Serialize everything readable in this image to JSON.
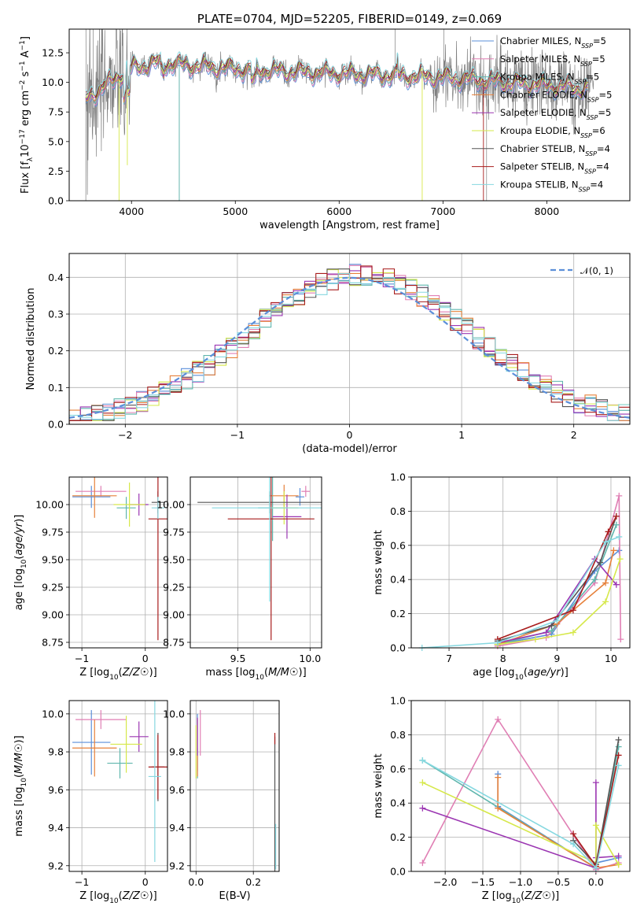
{
  "colors": {
    "Chabrier MILES": "#5b8fd9",
    "Salpeter MILES": "#e07fb4",
    "Kroupa MILES": "#5fb6ad",
    "Chabrier ELODIE": "#e6803a",
    "Salpeter ELODIE": "#9b36b2",
    "Kroupa ELODIE": "#d6e84a",
    "Chabrier STELIB": "#555555",
    "Salpeter STELIB": "#a81c1c",
    "Kroupa STELIB": "#86d8e0"
  },
  "chart_data": [
    {
      "id": "spectrum",
      "type": "line",
      "title": "PLATE=0704, MJD=52205, FIBERID=0149, z=0.069",
      "xlabel": "wavelength [Angstrom, rest frame]",
      "ylabel": "Flux [f_λ10^-17 erg cm^-2 s^-1 A^-1]",
      "xlim": [
        3400,
        8800
      ],
      "ylim": [
        0,
        14.5
      ],
      "xticks": [
        4000,
        5000,
        6000,
        7000,
        8000
      ],
      "yticks": [
        0.0,
        2.5,
        5.0,
        7.5,
        10.0,
        12.5
      ],
      "legend_position": "top-right",
      "legend": [
        {
          "name": "Chabrier MILES, N_SSP=5",
          "label": "Chabrier MILES, N",
          "sub": "SSP",
          "tail": "=5",
          "color": "#5b8fd9"
        },
        {
          "name": "Salpeter MILES, N_SSP=5",
          "label": "Salpeter MILES, N",
          "sub": "SSP",
          "tail": "=5",
          "color": "#e07fb4"
        },
        {
          "name": "Kroupa MILES, N_SSP=5",
          "label": "Kroupa MILES, N",
          "sub": "SSP",
          "tail": "=5",
          "color": "#5fb6ad"
        },
        {
          "name": "Chabrier ELODIE, N_SSP=5",
          "label": "Chabrier ELODIE, N",
          "sub": "SSP",
          "tail": "=5",
          "color": "#e6803a"
        },
        {
          "name": "Salpeter ELODIE, N_SSP=5",
          "label": "Salpeter ELODIE, N",
          "sub": "SSP",
          "tail": "=5",
          "color": "#9b36b2"
        },
        {
          "name": "Kroupa ELODIE, N_SSP=6",
          "label": "Kroupa ELODIE, N",
          "sub": "SSP",
          "tail": "=6",
          "color": "#d6e84a"
        },
        {
          "name": "Chabrier STELIB, N_SSP=4",
          "label": "Chabrier STELIB, N",
          "sub": "SSP",
          "tail": "=4",
          "color": "#555555"
        },
        {
          "name": "Salpeter STELIB, N_SSP=4",
          "label": "Salpeter STELIB, N",
          "sub": "SSP",
          "tail": "=4",
          "color": "#a81c1c"
        },
        {
          "name": "Kroupa STELIB, N_SSP=4",
          "label": "Kroupa STELIB, N",
          "sub": "SSP",
          "tail": "=4",
          "color": "#86d8e0"
        }
      ],
      "data_color": "#808080",
      "models": [
        {
          "name": "Kroupa ELODIE",
          "dips": [
            [
              3880,
              0
            ],
            [
              3960,
              3.0
            ],
            [
              6800,
              0
            ]
          ]
        },
        {
          "name": "Kroupa MILES",
          "dips": [
            [
              4460,
              0
            ]
          ]
        },
        {
          "name": "Salpeter STELIB",
          "dips": [
            [
              7390,
              0
            ]
          ]
        }
      ]
    },
    {
      "id": "residuals",
      "type": "step-histogram",
      "xlabel": "(data-model)/error",
      "ylabel": "Normed distribution",
      "xlim": [
        -2.5,
        2.5
      ],
      "ylim": [
        0,
        0.465
      ],
      "xticks": [
        -2,
        -1,
        0,
        1,
        2
      ],
      "yticks": [
        0.0,
        0.1,
        0.2,
        0.3,
        0.4
      ],
      "legend": [
        {
          "name": "N(0,1)",
          "label": "𝒩(0, 1)",
          "color": "#5b8fd9"
        }
      ],
      "legend_position": "top-right",
      "bins": {
        "start": -2.5,
        "width": 0.1
      }
    },
    {
      "id": "age-vs-Z",
      "type": "errorbar",
      "xlabel": "Z [log10(Z/Z☉)]",
      "ylabel": "age  [log10(age/yr)]",
      "xlim": [
        -1.2,
        0.35
      ],
      "ylim": [
        8.7,
        10.25
      ],
      "xticks": [
        -1,
        0
      ],
      "yticks": [
        8.75,
        9.0,
        9.25,
        9.5,
        9.75,
        10.0
      ],
      "points": [
        {
          "model": "Chabrier MILES",
          "x": -0.85,
          "y": 10.07,
          "xerr": 0.3,
          "yerr": 0.1
        },
        {
          "model": "Salpeter MILES",
          "x": -0.7,
          "y": 10.12,
          "xerr": 0.4,
          "yerr": 0.05
        },
        {
          "model": "Kroupa MILES",
          "x": -0.3,
          "y": 9.97,
          "xerr": 0.15,
          "yerr": 0.1
        },
        {
          "model": "Chabrier ELODIE",
          "x": -0.8,
          "y": 10.08,
          "xerr": 0.35,
          "yerr": 0.2
        },
        {
          "model": "Salpeter ELODIE",
          "x": -0.1,
          "y": 10.0,
          "xerr": 0.15,
          "yerr": 0.1
        },
        {
          "model": "Kroupa ELODIE",
          "x": -0.25,
          "y": 10.0,
          "xerr": 0.25,
          "yerr": 0.2
        },
        {
          "model": "Chabrier STELIB",
          "x": 0.2,
          "y": 10.02,
          "xerr": 0.1,
          "yerr": 0.1
        },
        {
          "model": "Salpeter STELIB",
          "x": 0.2,
          "y": 9.87,
          "xerr": 0.15,
          "yerr": 1.1
        },
        {
          "model": "Kroupa STELIB",
          "x": 0.2,
          "y": 9.97,
          "xerr": 0.1,
          "yerr": 0.1
        }
      ]
    },
    {
      "id": "age-vs-mass",
      "type": "errorbar",
      "xlabel": "mass [log10(M/M☉)]",
      "ylabel": "",
      "xlim": [
        9.17,
        10.08
      ],
      "ylim": [
        8.7,
        10.25
      ],
      "xticks": [
        9.5,
        10.0
      ],
      "yticks": [
        8.75,
        9.0,
        9.25,
        9.5,
        9.75,
        10.0
      ],
      "points": [
        {
          "model": "Chabrier MILES",
          "x": 9.93,
          "y": 10.07,
          "xerr": 0.03,
          "yerr": 0.08
        },
        {
          "model": "Salpeter MILES",
          "x": 9.97,
          "y": 10.12,
          "xerr": 0.03,
          "yerr": 0.05
        },
        {
          "model": "Kroupa MILES",
          "x": 9.74,
          "y": 9.97,
          "xerr": 0.1,
          "yerr": 0.3
        },
        {
          "model": "Chabrier ELODIE",
          "x": 9.82,
          "y": 10.08,
          "xerr": 0.1,
          "yerr": 0.1
        },
        {
          "model": "Salpeter ELODIE",
          "x": 9.84,
          "y": 9.89,
          "xerr": 0.1,
          "yerr": 0.2
        },
        {
          "model": "Kroupa ELODIE",
          "x": 9.82,
          "y": 9.97,
          "xerr": 0.1,
          "yerr": 0.15
        },
        {
          "model": "Chabrier STELIB",
          "x": 9.72,
          "y": 10.02,
          "xerr": 0.5,
          "yerr": 0.1
        },
        {
          "model": "Salpeter STELIB",
          "x": 9.73,
          "y": 9.87,
          "xerr": 0.3,
          "yerr": 1.1
        },
        {
          "model": "Kroupa STELIB",
          "x": 9.72,
          "y": 9.97,
          "xerr": 0.4,
          "yerr": 0.85
        }
      ]
    },
    {
      "id": "weight-vs-age",
      "type": "line",
      "xlabel": "age  [log10(age/yr)]",
      "ylabel": "mass weight",
      "xlim": [
        6.3,
        10.35
      ],
      "ylim": [
        0,
        1.0
      ],
      "xticks": [
        7,
        8,
        9,
        10
      ],
      "yticks": [
        0.0,
        0.2,
        0.4,
        0.6,
        0.8,
        1.0
      ],
      "series": [
        {
          "model": "Chabrier MILES",
          "x": [
            7.9,
            8.9,
            9.7,
            10.15
          ],
          "y": [
            0.02,
            0.08,
            0.45,
            0.57
          ]
        },
        {
          "model": "Salpeter MILES",
          "x": [
            7.9,
            8.8,
            9.7,
            10.15,
            10.18
          ],
          "y": [
            0.01,
            0.06,
            0.38,
            0.89,
            0.05
          ]
        },
        {
          "model": "Kroupa MILES",
          "x": [
            7.9,
            8.9,
            9.7,
            10.1
          ],
          "y": [
            0.02,
            0.1,
            0.4,
            0.72
          ]
        },
        {
          "model": "Chabrier ELODIE",
          "x": [
            7.9,
            9.0,
            9.9,
            10.05
          ],
          "y": [
            0.02,
            0.14,
            0.38,
            0.57
          ]
        },
        {
          "model": "Salpeter ELODIE",
          "x": [
            7.9,
            8.8,
            9.7,
            10.1
          ],
          "y": [
            0.03,
            0.09,
            0.52,
            0.37
          ]
        },
        {
          "model": "Kroupa ELODIE",
          "x": [
            7.9,
            8.6,
            9.3,
            9.9,
            10.17
          ],
          "y": [
            0.02,
            0.05,
            0.09,
            0.27,
            0.52
          ]
        },
        {
          "model": "Chabrier STELIB",
          "x": [
            7.9,
            8.9,
            9.8,
            10.1
          ],
          "y": [
            0.04,
            0.13,
            0.5,
            0.77
          ]
        },
        {
          "model": "Salpeter STELIB",
          "x": [
            7.9,
            9.3,
            9.95,
            10.1
          ],
          "y": [
            0.05,
            0.22,
            0.68,
            0.77
          ]
        },
        {
          "model": "Kroupa STELIB",
          "x": [
            6.5,
            7.9,
            9.0,
            9.9,
            10.15
          ],
          "y": [
            0.0,
            0.03,
            0.16,
            0.62,
            0.65
          ]
        }
      ]
    },
    {
      "id": "mass-vs-Z",
      "type": "errorbar",
      "xlabel": "Z [log10(Z/Z☉)]",
      "ylabel": "mass [log10(M/M☉)]",
      "xlim": [
        -1.2,
        0.35
      ],
      "ylim": [
        9.17,
        10.07
      ],
      "xticks": [
        -1,
        0
      ],
      "yticks": [
        9.2,
        9.4,
        9.6,
        9.8,
        10.0
      ],
      "points": [
        {
          "model": "Chabrier MILES",
          "x": -0.85,
          "y": 9.85,
          "xerr": 0.3,
          "yerr": 0.17
        },
        {
          "model": "Salpeter MILES",
          "x": -0.7,
          "y": 9.97,
          "xerr": 0.4,
          "yerr": 0.05
        },
        {
          "model": "Kroupa MILES",
          "x": -0.4,
          "y": 9.74,
          "xerr": 0.2,
          "yerr": 0.08
        },
        {
          "model": "Chabrier ELODIE",
          "x": -0.8,
          "y": 9.82,
          "xerr": 0.35,
          "yerr": 0.15
        },
        {
          "model": "Salpeter ELODIE",
          "x": -0.1,
          "y": 9.88,
          "xerr": 0.15,
          "yerr": 0.08
        },
        {
          "model": "Kroupa ELODIE",
          "x": -0.3,
          "y": 9.84,
          "xerr": 0.25,
          "yerr": 0.15
        },
        {
          "model": "Chabrier STELIB",
          "x": 0.2,
          "y": 9.72,
          "xerr": 0.1,
          "yerr": 0.18
        },
        {
          "model": "Salpeter STELIB",
          "x": 0.2,
          "y": 9.72,
          "xerr": 0.15,
          "yerr": 0.17
        },
        {
          "model": "Kroupa STELIB",
          "x": 0.15,
          "y": 9.67,
          "xerr": 0.1,
          "yerr": 0.45
        }
      ]
    },
    {
      "id": "mass-vs-EBV",
      "type": "errorbar",
      "xlabel": "E(B-V)",
      "ylabel": "",
      "xlim": [
        -0.02,
        0.29
      ],
      "ylim": [
        9.17,
        10.07
      ],
      "xticks": [
        0.0,
        0.2
      ],
      "yticks": [
        9.2,
        9.4,
        9.6,
        9.8,
        10.0
      ],
      "points": [
        {
          "model": "Chabrier MILES",
          "x": 0.005,
          "y": 9.85,
          "xerr": 0.0,
          "yerr": 0.15
        },
        {
          "model": "Salpeter MILES",
          "x": 0.015,
          "y": 9.9,
          "xerr": 0.0,
          "yerr": 0.12
        },
        {
          "model": "Kroupa MILES",
          "x": 0.005,
          "y": 9.74,
          "xerr": 0.0,
          "yerr": 0.08
        },
        {
          "model": "Chabrier ELODIE",
          "x": 0.005,
          "y": 9.82,
          "xerr": 0.0,
          "yerr": 0.15
        },
        {
          "model": "Salpeter ELODIE",
          "x": 0.005,
          "y": 9.88,
          "xerr": 0.0,
          "yerr": 0.1
        },
        {
          "model": "Kroupa ELODIE",
          "x": 0.0,
          "y": 9.8,
          "xerr": 0.0,
          "yerr": 0.14
        },
        {
          "model": "Chabrier STELIB",
          "x": 0.275,
          "y": 9.52,
          "xerr": 0.0,
          "yerr": 0.36
        },
        {
          "model": "Salpeter STELIB",
          "x": 0.275,
          "y": 9.87,
          "xerr": 0.0,
          "yerr": 0.03
        },
        {
          "model": "Kroupa STELIB",
          "x": 0.278,
          "y": 9.3,
          "xerr": 0.0,
          "yerr": 0.12
        }
      ]
    },
    {
      "id": "weight-vs-Z",
      "type": "line",
      "xlabel": "Z [log10(Z/Z☉)]",
      "ylabel": "mass weight",
      "xlim": [
        -2.45,
        0.45
      ],
      "ylim": [
        0,
        1.0
      ],
      "xticks": [
        -2.0,
        -1.5,
        -1.0,
        -0.5,
        0.0
      ],
      "yticks": [
        0.0,
        0.2,
        0.4,
        0.6,
        0.8,
        1.0
      ],
      "series": [
        {
          "model": "Chabrier MILES",
          "x": [
            -1.3,
            -1.3,
            0.0,
            0.0,
            0.3
          ],
          "y": [
            0.57,
            0.38,
            0.02,
            0.05,
            0.08
          ]
        },
        {
          "model": "Salpeter MILES",
          "x": [
            -2.3,
            -1.3,
            0.0,
            0.3
          ],
          "y": [
            0.05,
            0.89,
            0.01,
            0.05
          ]
        },
        {
          "model": "Kroupa MILES",
          "x": [
            -2.3,
            0.0,
            0.3
          ],
          "y": [
            0.65,
            0.02,
            0.73
          ]
        },
        {
          "model": "Chabrier ELODIE",
          "x": [
            -1.3,
            -1.3,
            0.0,
            0.3
          ],
          "y": [
            0.55,
            0.37,
            0.02,
            0.04
          ]
        },
        {
          "model": "Salpeter ELODIE",
          "x": [
            -2.3,
            0.0,
            0.0,
            0.0,
            0.3
          ],
          "y": [
            0.37,
            0.02,
            0.52,
            0.08,
            0.09
          ]
        },
        {
          "model": "Kroupa ELODIE",
          "x": [
            -2.3,
            0.0,
            0.0,
            0.3
          ],
          "y": [
            0.52,
            0.05,
            0.27,
            0.04
          ]
        },
        {
          "model": "Chabrier STELIB",
          "x": [
            -0.3,
            0.0,
            0.3
          ],
          "y": [
            0.18,
            0.04,
            0.77
          ]
        },
        {
          "model": "Salpeter STELIB",
          "x": [
            -0.3,
            0.0,
            0.3
          ],
          "y": [
            0.22,
            0.03,
            0.68
          ]
        },
        {
          "model": "Kroupa STELIB",
          "x": [
            -2.3,
            -0.3,
            0.0,
            0.3
          ],
          "y": [
            0.65,
            0.16,
            0.02,
            0.62
          ]
        }
      ]
    }
  ]
}
